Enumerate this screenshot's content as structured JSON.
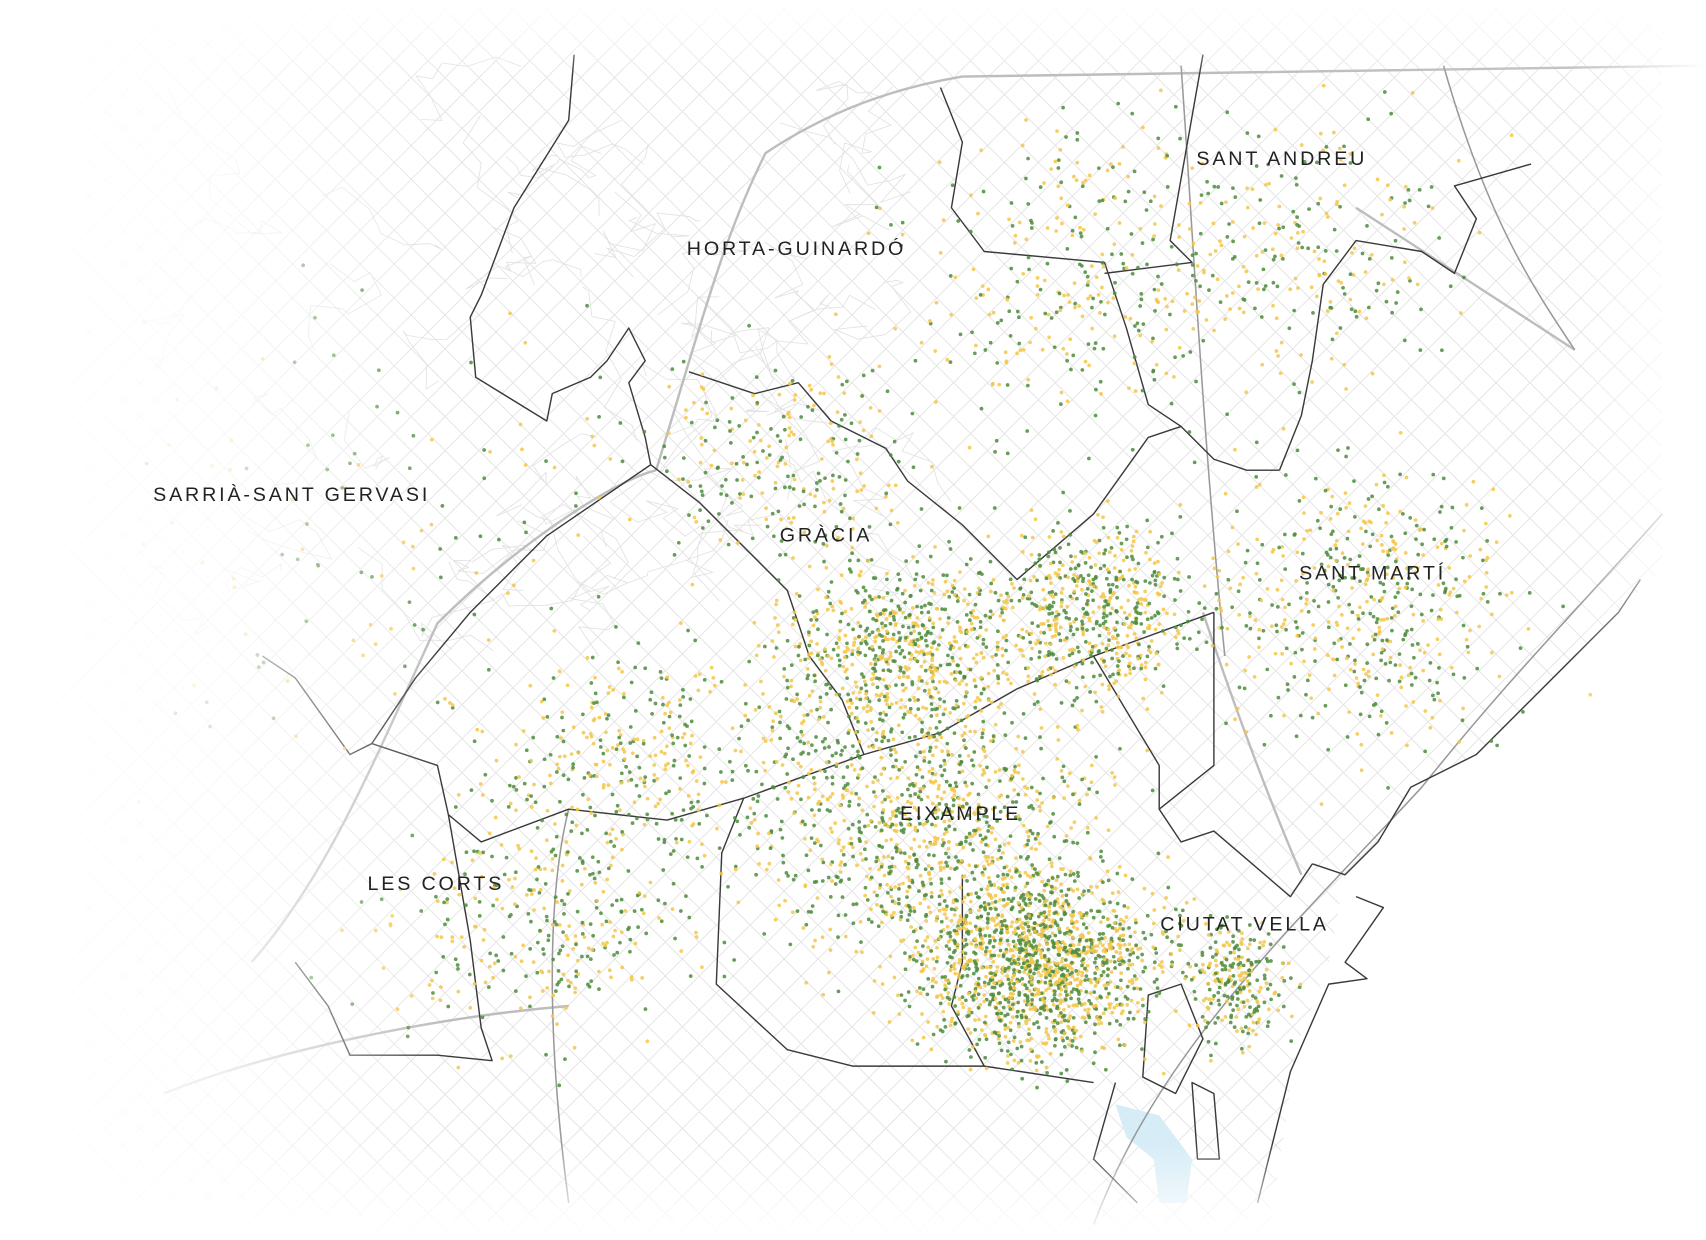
{
  "map": {
    "district_labels": [
      {
        "id": "sant-andreu",
        "text": "SANT ANDREU"
      },
      {
        "id": "horta-guinardo",
        "text": "HORTA-GUINARDÓ"
      },
      {
        "id": "sarria-sant-gervasi",
        "text": "SARRIÀ-SANT GERVASI"
      },
      {
        "id": "gracia",
        "text": "GRÀCIA"
      },
      {
        "id": "sant-marti",
        "text": "SANT MARTÍ"
      },
      {
        "id": "eixample",
        "text": "EIXAMPLE"
      },
      {
        "id": "les-corts",
        "text": "LES CORTS"
      },
      {
        "id": "ciutat-vella",
        "text": "CIUTAT VELLA"
      }
    ],
    "colors": {
      "point_green": "#4e8c3c",
      "point_yellow": "#f3c74a",
      "district_boundary": "#3a3a3a",
      "streets": "#dcdcdc",
      "water": "#d6ecf7",
      "background": "#ffffff"
    },
    "point_categories": [
      "green",
      "yellow"
    ]
  }
}
